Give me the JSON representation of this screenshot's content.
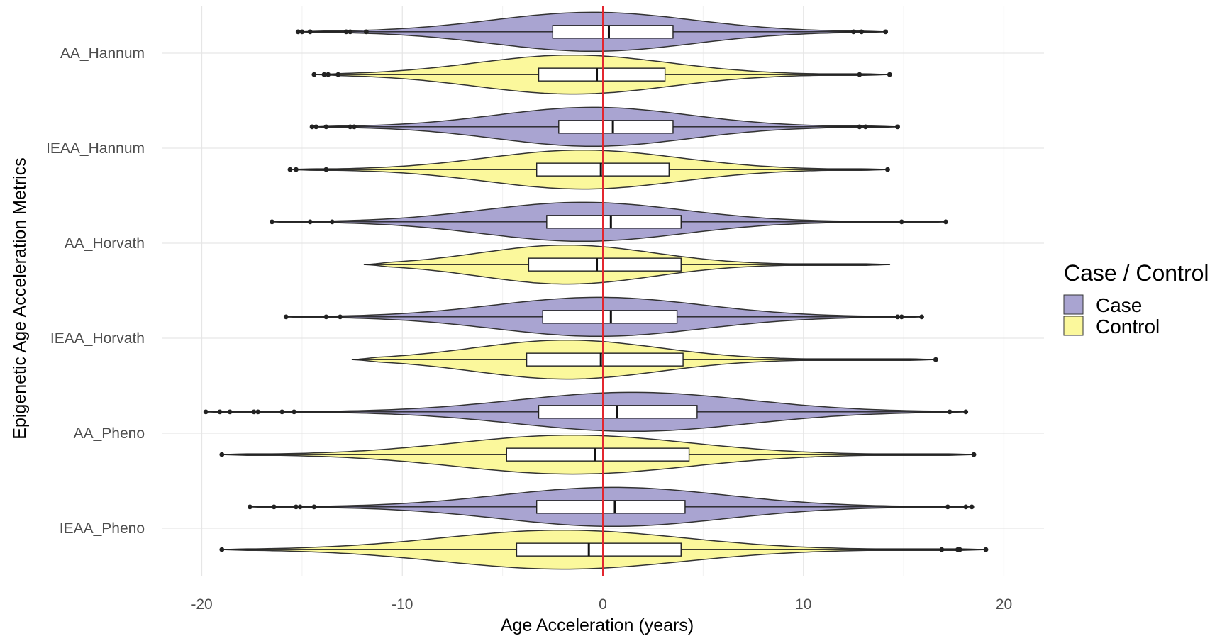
{
  "chart_data": {
    "type": "violin",
    "xlabel": "Age Acceleration (years)",
    "ylabel": "Epigenetic Age Acceleration Metrics",
    "xlim": [
      -22,
      22
    ],
    "x_ticks": [
      -20,
      -10,
      0,
      10,
      20
    ],
    "x_tick_labels": [
      "-20",
      "-10",
      "0",
      "10",
      "20"
    ],
    "reference_line": {
      "x": 0,
      "color": "#e3262f"
    },
    "grid": true,
    "legend": {
      "title": "Case / Control",
      "position": "right",
      "entries": [
        {
          "label": "Case",
          "color": "#a9a4d1"
        },
        {
          "label": "Control",
          "color": "#fbf89c"
        }
      ]
    },
    "categories": [
      "AA_Hannum",
      "IEAA_Hannum",
      "AA_Horvath",
      "IEAA_Horvath",
      "AA_Pheno",
      "IEAA_Pheno"
    ],
    "groups": [
      {
        "category": "AA_Hannum",
        "case": {
          "range": [
            -15.2,
            14.1
          ],
          "peak": -0.5,
          "spread": 5.0,
          "box": [
            -2.5,
            3.5
          ],
          "median": 0.3,
          "outliers": [
            -15.2,
            -15.0,
            -14.6,
            -12.8,
            -12.6,
            -11.8,
            12.5,
            12.9,
            14.1
          ]
        },
        "control": {
          "range": [
            -14.4,
            14.3
          ],
          "peak": -1.5,
          "spread": 4.8,
          "box": [
            -3.2,
            3.1
          ],
          "median": -0.3,
          "outliers": [
            -14.4,
            -13.9,
            -13.7,
            -13.2,
            12.8,
            14.3
          ]
        }
      },
      {
        "category": "IEAA_Hannum",
        "case": {
          "range": [
            -14.5,
            14.7
          ],
          "peak": -0.5,
          "spread": 4.8,
          "box": [
            -2.2,
            3.5
          ],
          "median": 0.5,
          "outliers": [
            -14.5,
            -14.3,
            -13.8,
            -12.6,
            -12.4,
            12.8,
            13.1,
            14.7
          ]
        },
        "control": {
          "range": [
            -15.6,
            14.2
          ],
          "peak": -1.0,
          "spread": 4.8,
          "box": [
            -3.3,
            3.3
          ],
          "median": -0.1,
          "outliers": [
            -15.6,
            -15.3,
            -13.8,
            14.2
          ]
        }
      },
      {
        "category": "AA_Horvath",
        "case": {
          "range": [
            -16.5,
            17.1
          ],
          "peak": -1.0,
          "spread": 5.0,
          "box": [
            -2.8,
            3.9
          ],
          "median": 0.4,
          "outliers": [
            -16.5,
            -14.6,
            -13.5,
            14.9,
            17.1
          ]
        },
        "control": {
          "range": [
            -11.9,
            14.3
          ],
          "peak": -1.8,
          "spread": 4.3,
          "box": [
            -3.7,
            3.9
          ],
          "median": -0.3,
          "outliers": []
        }
      },
      {
        "category": "IEAA_Horvath",
        "case": {
          "range": [
            -15.8,
            15.9
          ],
          "peak": -0.2,
          "spread": 5.2,
          "box": [
            -3.0,
            3.7
          ],
          "median": 0.4,
          "outliers": [
            -15.8,
            -13.8,
            -13.1,
            14.7,
            14.9,
            15.9
          ]
        },
        "control": {
          "range": [
            -12.5,
            16.6
          ],
          "peak": -1.8,
          "spread": 4.6,
          "box": [
            -3.8,
            4.0
          ],
          "median": -0.1,
          "outliers": [
            16.6
          ]
        }
      },
      {
        "category": "AA_Pheno",
        "case": {
          "range": [
            -19.8,
            18.1
          ],
          "peak": 1.5,
          "spread": 5.8,
          "box": [
            -3.2,
            4.7
          ],
          "median": 0.7,
          "outliers": [
            -19.8,
            -19.1,
            -18.6,
            -17.4,
            -17.2,
            -16.0,
            -15.4,
            17.3,
            18.1
          ]
        },
        "control": {
          "range": [
            -19.0,
            18.5
          ],
          "peak": -1.5,
          "spread": 5.8,
          "box": [
            -4.8,
            4.3
          ],
          "median": -0.4,
          "outliers": [
            -19.0,
            18.5
          ]
        }
      },
      {
        "category": "IEAA_Pheno",
        "case": {
          "range": [
            -17.6,
            18.4
          ],
          "peak": 0.5,
          "spread": 5.6,
          "box": [
            -3.3,
            4.1
          ],
          "median": 0.6,
          "outliers": [
            -17.6,
            -16.4,
            -15.3,
            -15.1,
            -14.4,
            17.2,
            18.1,
            18.4
          ]
        },
        "control": {
          "range": [
            -19.0,
            19.1
          ],
          "peak": -2.0,
          "spread": 6.0,
          "box": [
            -4.3,
            3.9
          ],
          "median": -0.7,
          "outliers": [
            -19.0,
            16.9,
            17.7,
            17.8,
            19.1
          ]
        }
      }
    ]
  }
}
